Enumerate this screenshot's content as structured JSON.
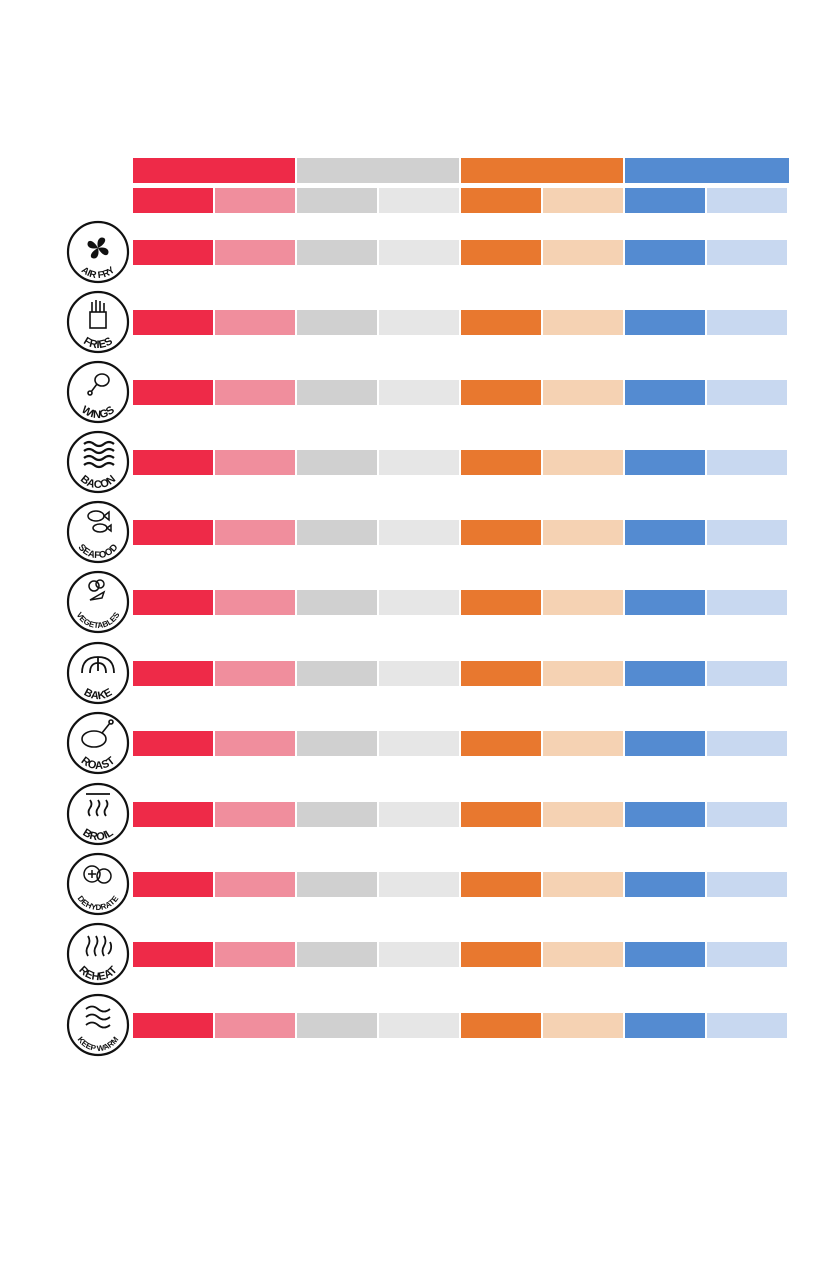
{
  "colors": {
    "red": "#ee2a48",
    "red_light": "#f08e9d",
    "gray": "#d0d0d0",
    "gray_light": "#e6e6e6",
    "orange": "#e8782f",
    "orange_light": "#f5d2b3",
    "blue": "#548bd1",
    "blue_light": "#c8d8f0"
  },
  "functions": [
    {
      "label": "AIR FRY",
      "icon": "fan-icon"
    },
    {
      "label": "FRIES",
      "icon": "fries-icon"
    },
    {
      "label": "WINGS",
      "icon": "drumstick-icon"
    },
    {
      "label": "BACON",
      "icon": "bacon-icon"
    },
    {
      "label": "SEAFOOD",
      "icon": "fish-icon"
    },
    {
      "label": "VEGETABLES",
      "icon": "vegetables-icon"
    },
    {
      "label": "BAKE",
      "icon": "croissant-icon"
    },
    {
      "label": "ROAST",
      "icon": "roast-chicken-icon"
    },
    {
      "label": "BROIL",
      "icon": "broil-heat-icon"
    },
    {
      "label": "DEHYDRATE",
      "icon": "dried-fruit-icon"
    },
    {
      "label": "REHEAT",
      "icon": "reheat-icon"
    },
    {
      "label": "KEEP WARM",
      "icon": "keep-warm-icon"
    }
  ]
}
